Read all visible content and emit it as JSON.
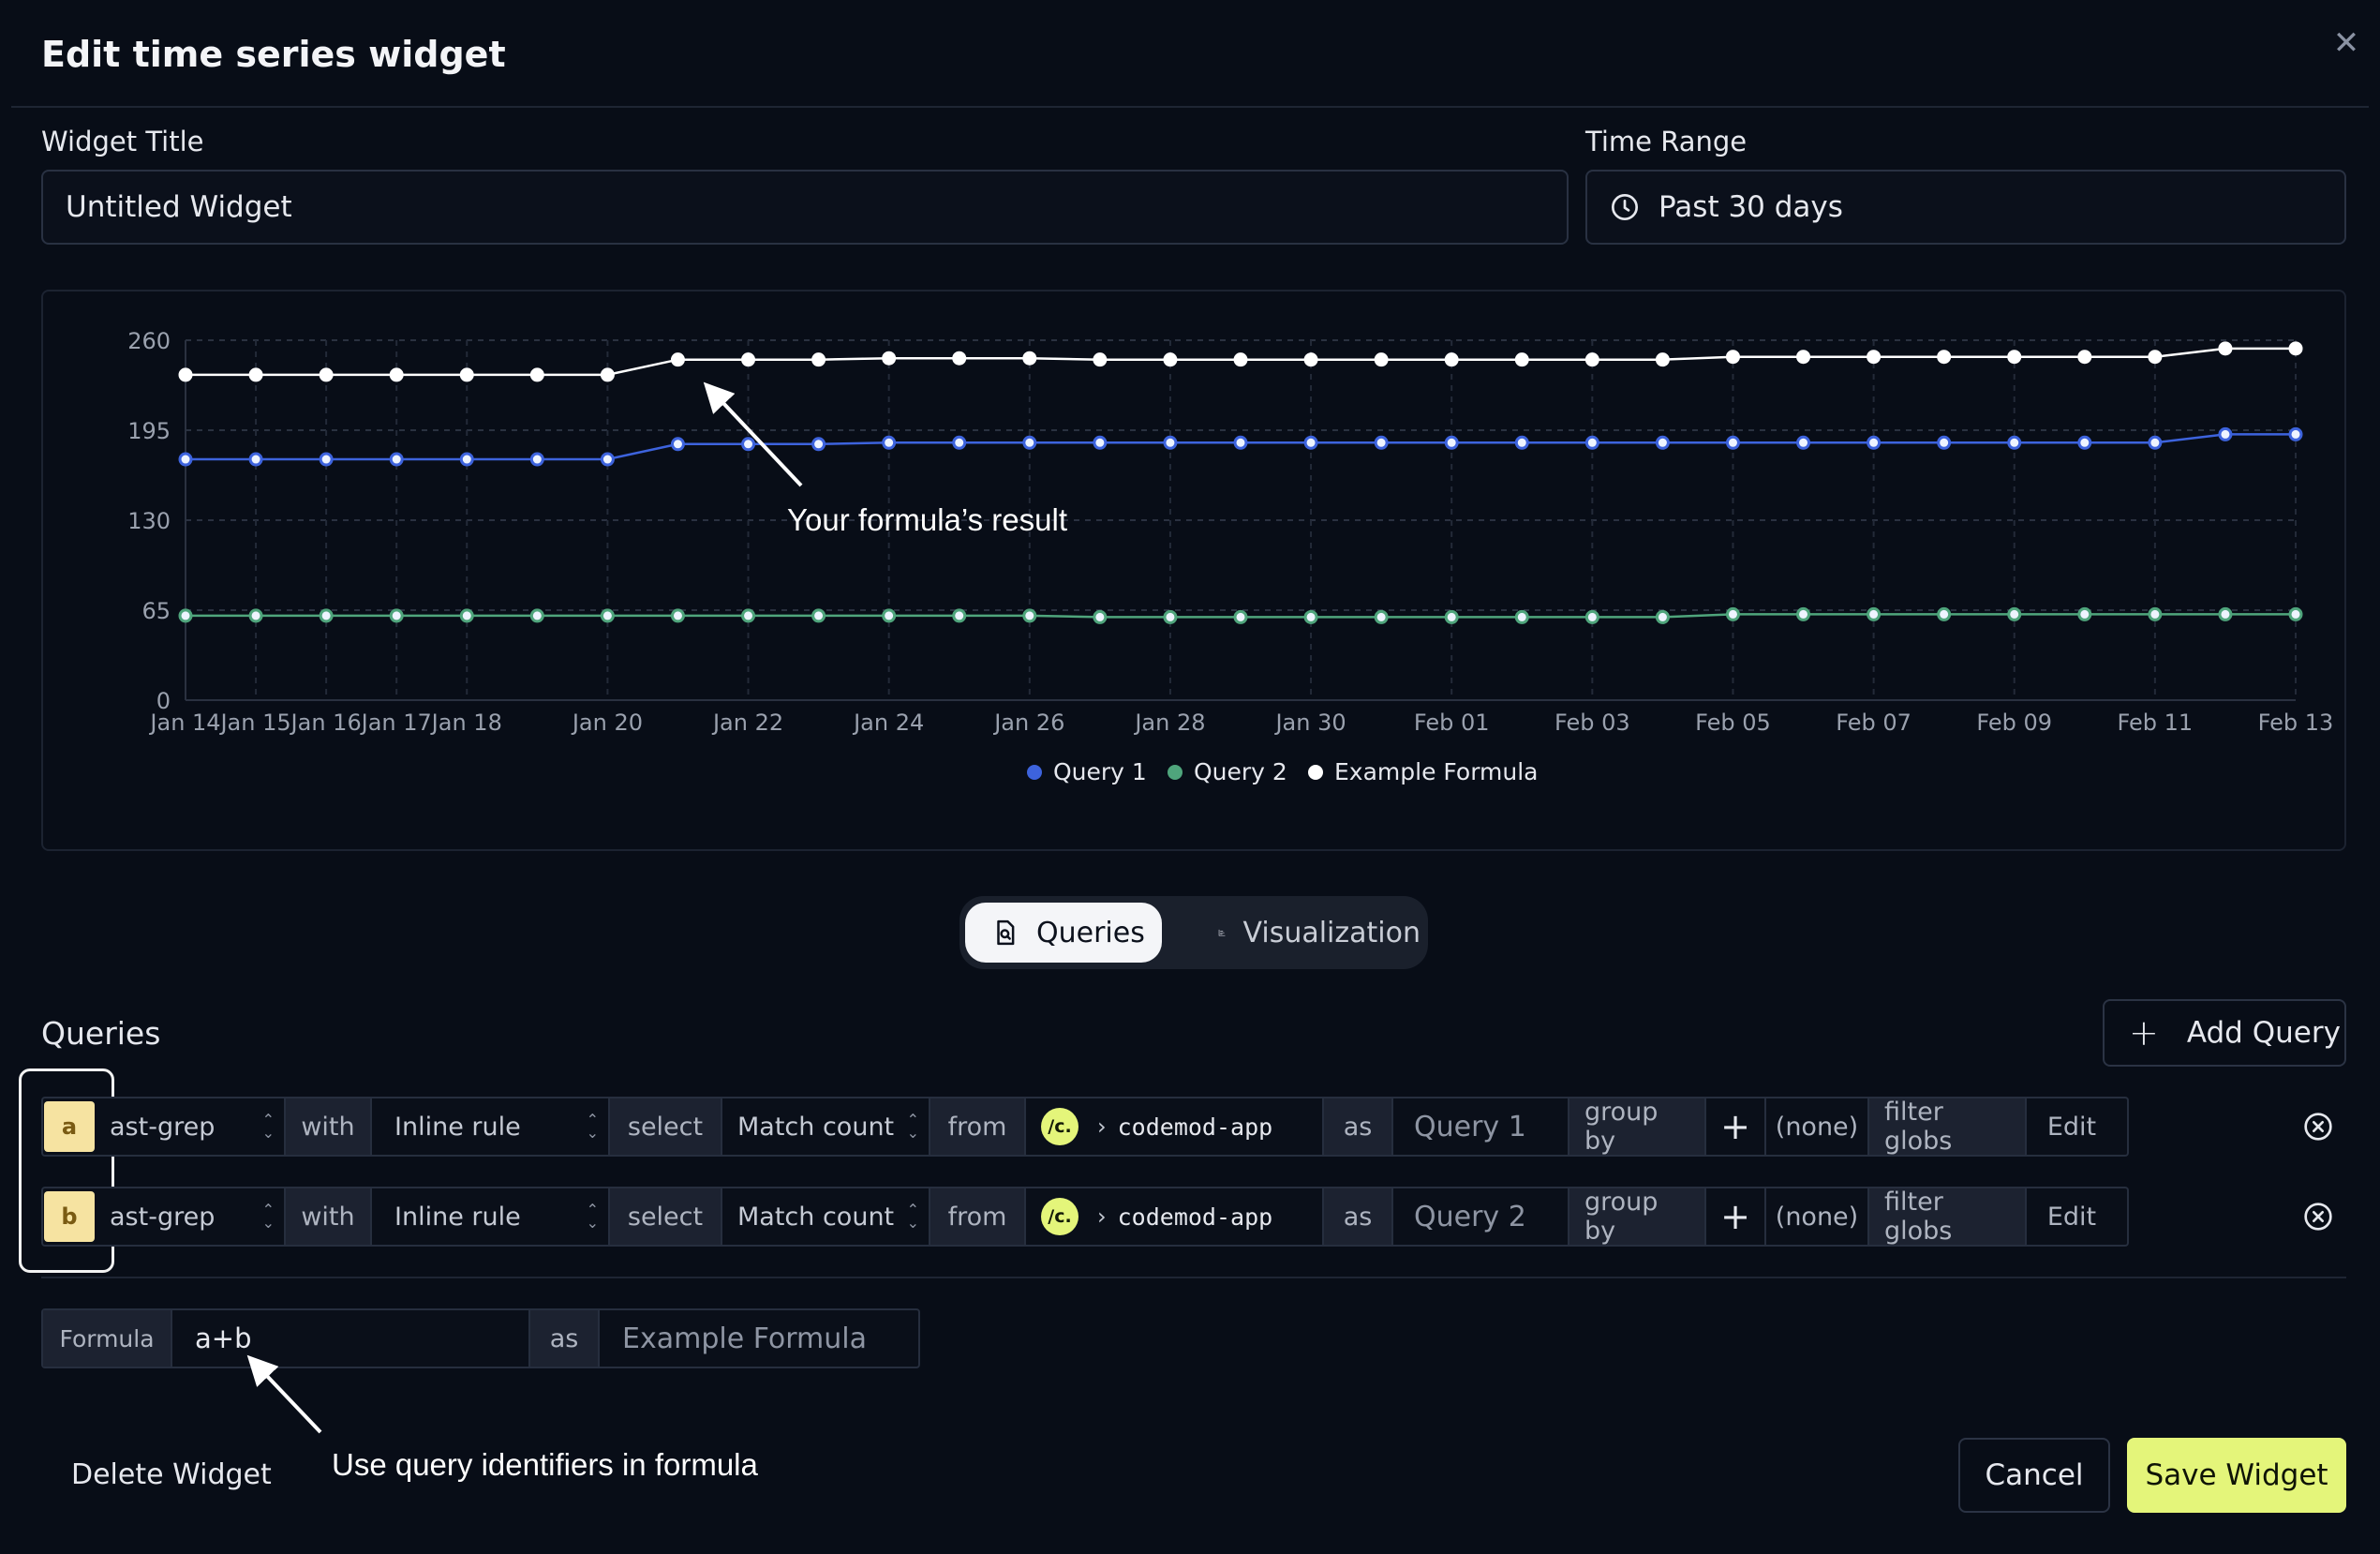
{
  "dialog": {
    "title": "Edit time series widget",
    "close_icon": "close-icon"
  },
  "widget_title": {
    "label": "Widget Title",
    "value": "Untitled Widget"
  },
  "time_range": {
    "label": "Time Range",
    "value": "Past 30 days",
    "icon": "clock-icon"
  },
  "chart_data": {
    "type": "line",
    "x": [
      "Jan 14",
      "Jan 15",
      "Jan 16",
      "Jan 17",
      "Jan 18",
      "Jan 19",
      "Jan 20",
      "Jan 21",
      "Jan 22",
      "Jan 23",
      "Jan 24",
      "Jan 25",
      "Jan 26",
      "Jan 27",
      "Jan 28",
      "Jan 29",
      "Jan 30",
      "Jan 31",
      "Feb 01",
      "Feb 02",
      "Feb 03",
      "Feb 04",
      "Feb 05",
      "Feb 06",
      "Feb 07",
      "Feb 08",
      "Feb 09",
      "Feb 10",
      "Feb 11",
      "Feb 12",
      "Feb 13"
    ],
    "xticks": [
      "Jan 14",
      "Jan 15",
      "Jan 16",
      "Jan 17",
      "Jan 18",
      "Jan 20",
      "Jan 22",
      "Jan 24",
      "Jan 26",
      "Jan 28",
      "Jan 30",
      "Feb 01",
      "Feb 03",
      "Feb 05",
      "Feb 07",
      "Feb 09",
      "Feb 11",
      "Feb 13"
    ],
    "yticks": [
      0,
      65,
      130,
      195,
      260
    ],
    "ylim": [
      0,
      260
    ],
    "grid": true,
    "legend_position": "bottom",
    "series": [
      {
        "name": "Query 1",
        "color": "#3d63dd",
        "values": [
          174,
          174,
          174,
          174,
          174,
          174,
          174,
          185,
          185,
          185,
          186,
          186,
          186,
          186,
          186,
          186,
          186,
          186,
          186,
          186,
          186,
          186,
          186,
          186,
          186,
          186,
          186,
          186,
          186,
          192,
          192
        ]
      },
      {
        "name": "Query 2",
        "color": "#4fa57c",
        "values": [
          61,
          61,
          61,
          61,
          61,
          61,
          61,
          61,
          61,
          61,
          61,
          61,
          61,
          60,
          60,
          60,
          60,
          60,
          60,
          60,
          60,
          60,
          62,
          62,
          62,
          62,
          62,
          62,
          62,
          62,
          62
        ]
      },
      {
        "name": "Example Formula",
        "color": "#ffffff",
        "values": [
          235,
          235,
          235,
          235,
          235,
          235,
          235,
          246,
          246,
          246,
          247,
          247,
          247,
          246,
          246,
          246,
          246,
          246,
          246,
          246,
          246,
          246,
          248,
          248,
          248,
          248,
          248,
          248,
          248,
          254,
          254
        ]
      }
    ],
    "annotation": "Your formula’s result"
  },
  "tabs": [
    {
      "label": "Queries",
      "icon": "search-document-icon"
    },
    {
      "label": "Visualization",
      "icon": "bar-chart-icon"
    }
  ],
  "queries": {
    "title": "Queries",
    "add_label": "Add Query",
    "rows": [
      {
        "id": "a",
        "engine": "ast-grep",
        "with": "with",
        "rule": "Inline rule",
        "select": "select",
        "metric": "Match count",
        "from": "from",
        "repo_badge": "/c.",
        "repo": "codemod-app",
        "as": "as",
        "name": "Query 1",
        "group_by": "group by",
        "group_value": "(none)",
        "filter": "filter globs",
        "edit": "Edit"
      },
      {
        "id": "b",
        "engine": "ast-grep",
        "with": "with",
        "rule": "Inline rule",
        "select": "select",
        "metric": "Match count",
        "from": "from",
        "repo_badge": "/c.",
        "repo": "codemod-app",
        "as": "as",
        "name": "Query 2",
        "group_by": "group by",
        "group_value": "(none)",
        "filter": "filter globs",
        "edit": "Edit"
      }
    ]
  },
  "formula": {
    "label": "Formula",
    "value": "a+b",
    "as": "as",
    "name_placeholder": "Example Formula",
    "annotation": "Use query identifiers in formula"
  },
  "footer": {
    "delete": "Delete Widget",
    "cancel": "Cancel",
    "save": "Save Widget"
  }
}
